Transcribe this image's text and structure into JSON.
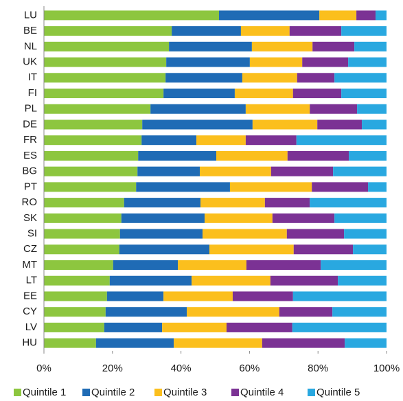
{
  "chart_data": {
    "type": "stacked-bar-horizontal",
    "categories": [
      "LU",
      "BE",
      "NL",
      "UK",
      "IT",
      "FI",
      "PL",
      "DE",
      "FR",
      "ES",
      "BG",
      "PT",
      "RO",
      "SK",
      "SI",
      "CZ",
      "MT",
      "LT",
      "EE",
      "CY",
      "LV",
      "HU"
    ],
    "series": [
      {
        "name": "Quintile 1",
        "color": "#8dc63f",
        "values": [
          51.1,
          37.3,
          36.5,
          35.7,
          35.5,
          34.9,
          31.1,
          28.7,
          28.5,
          27.5,
          27.3,
          26.9,
          23.4,
          22.6,
          22.2,
          22,
          20.2,
          19.2,
          18.4,
          18,
          17.6,
          15.2
        ]
      },
      {
        "name": "Quintile 2",
        "color": "#1f6bb5",
        "values": [
          29.3,
          20.2,
          24.2,
          24.4,
          22.4,
          20.8,
          27.8,
          32.2,
          16,
          22.8,
          18.2,
          27.4,
          22.3,
          24.3,
          24.1,
          26.3,
          18.9,
          23.9,
          16.5,
          23.7,
          16.9,
          22.7
        ]
      },
      {
        "name": "Quintile 3",
        "color": "#fbbf1d",
        "values": [
          10.8,
          14.2,
          17.7,
          15.3,
          16,
          17,
          18.7,
          18.9,
          14.4,
          20.8,
          20.8,
          23.9,
          18.8,
          19.8,
          24.6,
          24.6,
          20,
          23,
          20.2,
          27,
          18.8,
          25.8
        ]
      },
      {
        "name": "Quintile 4",
        "color": "#7b3294",
        "values": [
          5.6,
          15.1,
          12.2,
          13.4,
          10.9,
          14.1,
          13.8,
          13,
          14.8,
          17.9,
          18.1,
          16.4,
          13.1,
          18.1,
          16.7,
          17.3,
          21.7,
          19.7,
          17.6,
          15.5,
          19.2,
          24.1
        ]
      },
      {
        "name": "Quintile 5",
        "color": "#29a8e0",
        "values": [
          3.2,
          13.2,
          9.4,
          11.2,
          15.2,
          13.2,
          8.6,
          7.2,
          26.3,
          11,
          15.6,
          5.4,
          22.4,
          15.2,
          12.4,
          9.8,
          19.2,
          14.2,
          27.3,
          15.8,
          27.5,
          12.2
        ]
      }
    ],
    "xlim": [
      0,
      100
    ],
    "xticks": [
      {
        "value": 0,
        "label": "0%"
      },
      {
        "value": 20,
        "label": "20%"
      },
      {
        "value": 40,
        "label": "40%"
      },
      {
        "value": 60,
        "label": "60%"
      },
      {
        "value": 80,
        "label": "80%"
      },
      {
        "value": 100,
        "label": "100%"
      }
    ]
  }
}
